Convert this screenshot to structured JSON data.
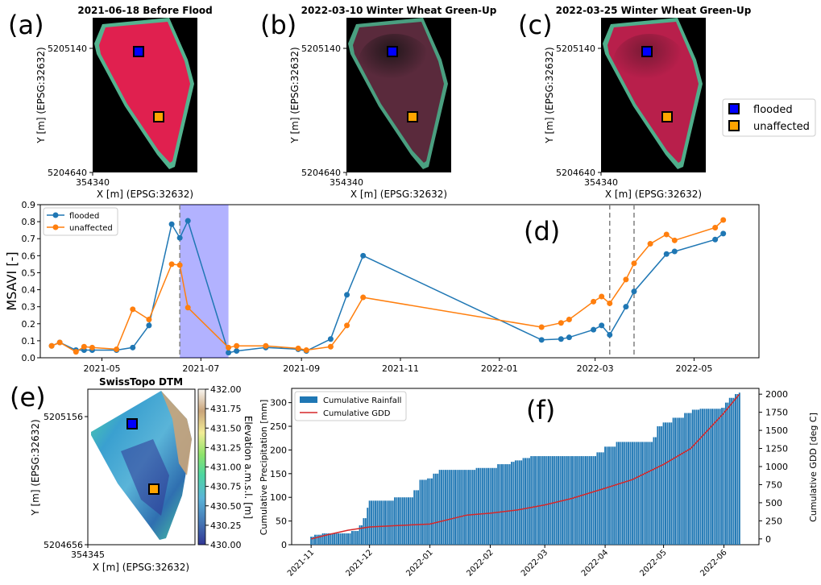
{
  "figure": {
    "panel_letters": [
      "(a)",
      "(b)",
      "(c)",
      "(d)",
      "(e)",
      "(f)"
    ]
  },
  "images": [
    {
      "letter": "(a)",
      "title": "2021-06-18 Before Flood",
      "ytick": "5205140",
      "ybottom": "5204640",
      "xtick": "354340",
      "xlabel": "X [m] (EPSG:32632)",
      "ylabel": "Y [m] (EPSG:32632)",
      "fill": "#e0204f",
      "edge": "#53b38f"
    },
    {
      "letter": "(b)",
      "title": "2022-03-10 Winter Wheat Green-Up",
      "ytick": "5205140",
      "ybottom": "5204640",
      "xtick": "354340",
      "xlabel": "X [m] (EPSG:32632)",
      "ylabel": "Y [m] (EPSG:32632)",
      "fill": "#5a2a3c",
      "edge": "#4a9f80"
    },
    {
      "letter": "(c)",
      "title": "2022-03-25 Winter Wheat Green-Up",
      "ytick": "5205140",
      "ybottom": "5204640",
      "xtick": "354340",
      "xlabel": "X [m] (EPSG:32632)",
      "ylabel": "Y [m] (EPSG:32632)",
      "fill": "#b81f4b",
      "edge": "#4fae8b"
    }
  ],
  "legend_points": {
    "items": [
      {
        "label": "flooded",
        "color": "#0000ff"
      },
      {
        "label": "unaffected",
        "color": "#ffa500"
      }
    ]
  },
  "dtm": {
    "letter": "(e)",
    "title": "SwissTopo DTM",
    "ytick": "5205156",
    "ybottom": "5204656",
    "xtick": "354345",
    "xlabel": "X [m] (EPSG:32632)",
    "ylabel": "Y [m] (EPSG:32632)",
    "colorbar_label": "Elevation a.m.s.l. [m]",
    "colorbar_ticks": [
      "432.00",
      "431.75",
      "431.50",
      "431.25",
      "431.00",
      "430.75",
      "430.50",
      "430.25",
      "430.00"
    ]
  },
  "chart_data": [
    {
      "panel": "(d)",
      "type": "line",
      "ylabel": "MSAVI [-]",
      "ylim": [
        0,
        0.9
      ],
      "yticks": [
        "0.0",
        "0.1",
        "0.2",
        "0.3",
        "0.4",
        "0.5",
        "0.6",
        "0.7",
        "0.8",
        "0.9"
      ],
      "xlim": [
        "2021-03-24",
        "2022-06-10"
      ],
      "xticks": [
        {
          "date": "2021-05-01",
          "label": "2021-05"
        },
        {
          "date": "2021-07-01",
          "label": "2021-07"
        },
        {
          "date": "2021-09-01",
          "label": "2021-09"
        },
        {
          "date": "2021-11-01",
          "label": "2021-11"
        },
        {
          "date": "2022-01-01",
          "label": "2022-01"
        },
        {
          "date": "2022-03-01",
          "label": "2022-03"
        },
        {
          "date": "2022-05-01",
          "label": "2022-05"
        }
      ],
      "legend": "top-left",
      "flood_span": [
        "2021-06-18",
        "2021-07-18"
      ],
      "vlines": [
        "2021-06-18",
        "2022-03-10",
        "2022-03-25"
      ],
      "series": [
        {
          "name": "flooded",
          "color": "#1f77b4",
          "points": [
            [
              "2021-03-31",
              0.07
            ],
            [
              "2021-04-05",
              0.09
            ],
            [
              "2021-04-15",
              0.045
            ],
            [
              "2021-04-20",
              0.045
            ],
            [
              "2021-04-25",
              0.045
            ],
            [
              "2021-05-10",
              0.045
            ],
            [
              "2021-05-20",
              0.06
            ],
            [
              "2021-05-30",
              0.19
            ],
            [
              "2021-06-13",
              0.785
            ],
            [
              "2021-06-18",
              0.705
            ],
            [
              "2021-06-23",
              0.805
            ],
            [
              "2021-07-18",
              0.03
            ],
            [
              "2021-07-23",
              0.04
            ],
            [
              "2021-08-10",
              0.06
            ],
            [
              "2021-08-30",
              0.05
            ],
            [
              "2021-09-04",
              0.04
            ],
            [
              "2021-09-19",
              0.11
            ],
            [
              "2021-09-29",
              0.37
            ],
            [
              "2021-10-09",
              0.6
            ],
            [
              "2022-01-27",
              0.105
            ],
            [
              "2022-02-08",
              0.11
            ],
            [
              "2022-02-13",
              0.12
            ],
            [
              "2022-02-28",
              0.165
            ],
            [
              "2022-03-05",
              0.19
            ],
            [
              "2022-03-10",
              0.135
            ],
            [
              "2022-03-20",
              0.3
            ],
            [
              "2022-03-25",
              0.39
            ],
            [
              "2022-04-14",
              0.61
            ],
            [
              "2022-04-19",
              0.625
            ],
            [
              "2022-05-14",
              0.695
            ],
            [
              "2022-05-19",
              0.73
            ]
          ]
        },
        {
          "name": "unaffected",
          "color": "#ff7f0e",
          "points": [
            [
              "2021-03-31",
              0.07
            ],
            [
              "2021-04-05",
              0.09
            ],
            [
              "2021-04-15",
              0.035
            ],
            [
              "2021-04-20",
              0.065
            ],
            [
              "2021-04-25",
              0.06
            ],
            [
              "2021-05-10",
              0.05
            ],
            [
              "2021-05-20",
              0.285
            ],
            [
              "2021-05-30",
              0.225
            ],
            [
              "2021-06-13",
              0.55
            ],
            [
              "2021-06-18",
              0.545
            ],
            [
              "2021-06-23",
              0.295
            ],
            [
              "2021-07-18",
              0.06
            ],
            [
              "2021-07-23",
              0.07
            ],
            [
              "2021-08-10",
              0.07
            ],
            [
              "2021-08-30",
              0.055
            ],
            [
              "2021-09-04",
              0.045
            ],
            [
              "2021-09-19",
              0.065
            ],
            [
              "2021-09-29",
              0.19
            ],
            [
              "2021-10-09",
              0.355
            ],
            [
              "2022-01-27",
              0.18
            ],
            [
              "2022-02-08",
              0.205
            ],
            [
              "2022-02-13",
              0.225
            ],
            [
              "2022-02-28",
              0.33
            ],
            [
              "2022-03-05",
              0.36
            ],
            [
              "2022-03-10",
              0.32
            ],
            [
              "2022-03-20",
              0.46
            ],
            [
              "2022-03-25",
              0.555
            ],
            [
              "2022-04-04",
              0.67
            ],
            [
              "2022-04-14",
              0.725
            ],
            [
              "2022-04-19",
              0.69
            ],
            [
              "2022-05-14",
              0.765
            ],
            [
              "2022-05-19",
              0.81
            ]
          ]
        }
      ]
    },
    {
      "panel": "(f)",
      "type": "bar",
      "ylabel": "Cumulative Precipitation [mm]",
      "y2label": "Cumulative GDD [deg C]",
      "ylim": [
        0,
        330
      ],
      "yticks": [
        "0",
        "50",
        "100",
        "150",
        "200",
        "250",
        "300"
      ],
      "y2lim": [
        -80,
        2080
      ],
      "y2ticks": [
        "0",
        "250",
        "500",
        "750",
        "1000",
        "1250",
        "1500",
        "1750",
        "2000"
      ],
      "xlim": [
        "2021-10-22",
        "2022-06-19"
      ],
      "xticks": [
        {
          "date": "2021-11-01",
          "label": "2021-11"
        },
        {
          "date": "2021-12-01",
          "label": "2021-12"
        },
        {
          "date": "2022-01-01",
          "label": "2022-01"
        },
        {
          "date": "2022-02-01",
          "label": "2022-02"
        },
        {
          "date": "2022-03-01",
          "label": "2022-03"
        },
        {
          "date": "2022-04-01",
          "label": "2022-04"
        },
        {
          "date": "2022-05-01",
          "label": "2022-05"
        },
        {
          "date": "2022-06-01",
          "label": "2022-06"
        }
      ],
      "legend": "top-left",
      "series": [
        {
          "name": "Cumulative Rainfall",
          "color": "#1f77b4",
          "kind": "bar",
          "start": "2021-11-01",
          "end": "2022-06-09",
          "steps": [
            [
              "2021-11-01",
              17
            ],
            [
              "2021-11-03",
              21
            ],
            [
              "2021-11-07",
              24
            ],
            [
              "2021-11-22",
              29
            ],
            [
              "2021-11-26",
              41
            ],
            [
              "2021-11-28",
              56
            ],
            [
              "2021-11-30",
              78
            ],
            [
              "2021-12-01",
              93
            ],
            [
              "2021-12-14",
              100
            ],
            [
              "2021-12-24",
              115
            ],
            [
              "2021-12-27",
              137
            ],
            [
              "2021-12-31",
              140
            ],
            [
              "2022-01-03",
              150
            ],
            [
              "2022-01-06",
              158
            ],
            [
              "2022-01-25",
              162
            ],
            [
              "2022-02-05",
              170
            ],
            [
              "2022-02-12",
              175
            ],
            [
              "2022-02-14",
              178
            ],
            [
              "2022-02-18",
              183
            ],
            [
              "2022-02-22",
              187
            ],
            [
              "2022-03-28",
              195
            ],
            [
              "2022-04-01",
              207
            ],
            [
              "2022-04-07",
              217
            ],
            [
              "2022-04-26",
              227
            ],
            [
              "2022-04-28",
              250
            ],
            [
              "2022-05-01",
              258
            ],
            [
              "2022-05-06",
              268
            ],
            [
              "2022-05-12",
              278
            ],
            [
              "2022-05-16",
              285
            ],
            [
              "2022-05-20",
              287
            ],
            [
              "2022-05-31",
              289
            ],
            [
              "2022-06-02",
              300
            ],
            [
              "2022-06-04",
              310
            ],
            [
              "2022-06-07",
              318
            ],
            [
              "2022-06-09",
              321
            ]
          ]
        },
        {
          "name": "Cumulative GDD",
          "color": "#d62728",
          "kind": "line",
          "points": [
            [
              "2021-11-01",
              0
            ],
            [
              "2021-11-10",
              60
            ],
            [
              "2021-11-20",
              120
            ],
            [
              "2021-12-01",
              165
            ],
            [
              "2021-12-15",
              185
            ],
            [
              "2022-01-01",
              205
            ],
            [
              "2022-01-20",
              330
            ],
            [
              "2022-02-01",
              355
            ],
            [
              "2022-02-15",
              400
            ],
            [
              "2022-03-01",
              470
            ],
            [
              "2022-03-15",
              560
            ],
            [
              "2022-04-01",
              700
            ],
            [
              "2022-04-15",
              820
            ],
            [
              "2022-05-01",
              1030
            ],
            [
              "2022-05-15",
              1250
            ],
            [
              "2022-06-01",
              1740
            ],
            [
              "2022-06-09",
              2000
            ]
          ]
        }
      ]
    }
  ]
}
